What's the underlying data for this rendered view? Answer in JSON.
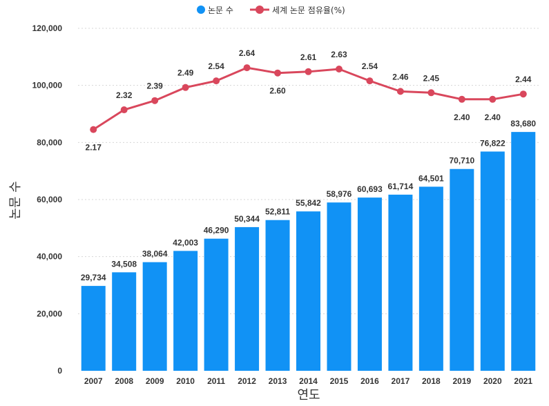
{
  "chart_data": {
    "type": "bar",
    "categories": [
      "2007",
      "2008",
      "2009",
      "2010",
      "2011",
      "2012",
      "2013",
      "2014",
      "2015",
      "2016",
      "2017",
      "2018",
      "2019",
      "2020",
      "2021"
    ],
    "series": [
      {
        "name": "논문 수",
        "type": "bar",
        "color": "#1192f5",
        "values": [
          29734,
          34508,
          38064,
          42003,
          46290,
          50344,
          52811,
          55842,
          58976,
          60693,
          61714,
          64501,
          70710,
          76822,
          83680
        ],
        "labels": [
          "29,734",
          "34,508",
          "38,064",
          "42,003",
          "46,290",
          "50,344",
          "52,811",
          "55,842",
          "58,976",
          "60,693",
          "61,714",
          "64,501",
          "70,710",
          "76,822",
          "83,680"
        ]
      },
      {
        "name": "세계 논문 점유율(%)",
        "type": "line",
        "color": "#d9475c",
        "values": [
          2.17,
          2.32,
          2.39,
          2.49,
          2.54,
          2.64,
          2.6,
          2.61,
          2.63,
          2.54,
          2.46,
          2.45,
          2.4,
          2.4,
          2.44
        ],
        "labels": [
          "2.17",
          "2.32",
          "2.39",
          "2.49",
          "2.54",
          "2.64",
          "2.60",
          "2.61",
          "2.63",
          "2.54",
          "2.46",
          "2.45",
          "2.40",
          "2.40",
          "2.44"
        ]
      }
    ],
    "xlabel": "연도",
    "ylabel": "논문 수",
    "ylim": [
      0,
      120000
    ],
    "y_ticks": [
      0,
      20000,
      40000,
      60000,
      80000,
      100000,
      120000
    ],
    "y_tick_labels": [
      "0",
      "20,000",
      "40,000",
      "60,000",
      "80,000",
      "100,000",
      "120,000"
    ],
    "line_axis": "hidden secondary axis",
    "grid": "horizontal dotted",
    "legend_position": "top-center"
  }
}
